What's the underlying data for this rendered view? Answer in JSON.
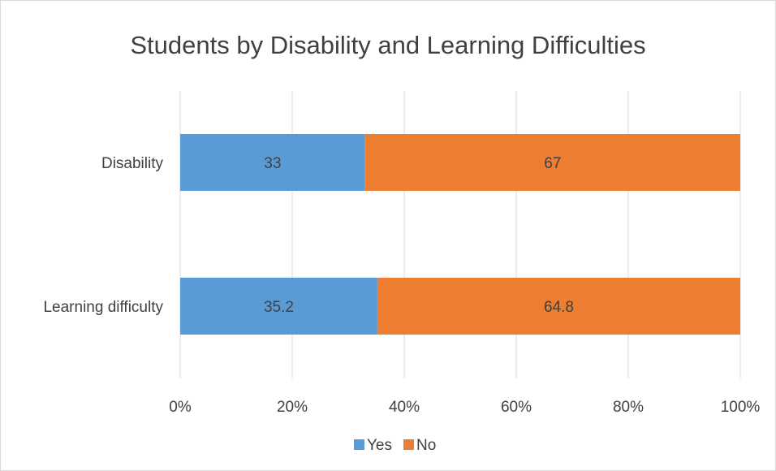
{
  "chart_data": {
    "type": "bar",
    "orientation": "horizontal",
    "stacked": "percent",
    "title": "Students by Disability and Learning Difficulties",
    "categories": [
      "Disability",
      "Learning difficulty"
    ],
    "series": [
      {
        "name": "Yes",
        "values": [
          33,
          35.2
        ],
        "color": "#5b9bd5"
      },
      {
        "name": "No",
        "values": [
          67,
          64.8
        ],
        "color": "#ed7d31"
      }
    ],
    "x_ticks": [
      "0%",
      "20%",
      "40%",
      "60%",
      "80%",
      "100%"
    ],
    "xlim": [
      0,
      100
    ],
    "grid": true,
    "legend": "bottom"
  }
}
